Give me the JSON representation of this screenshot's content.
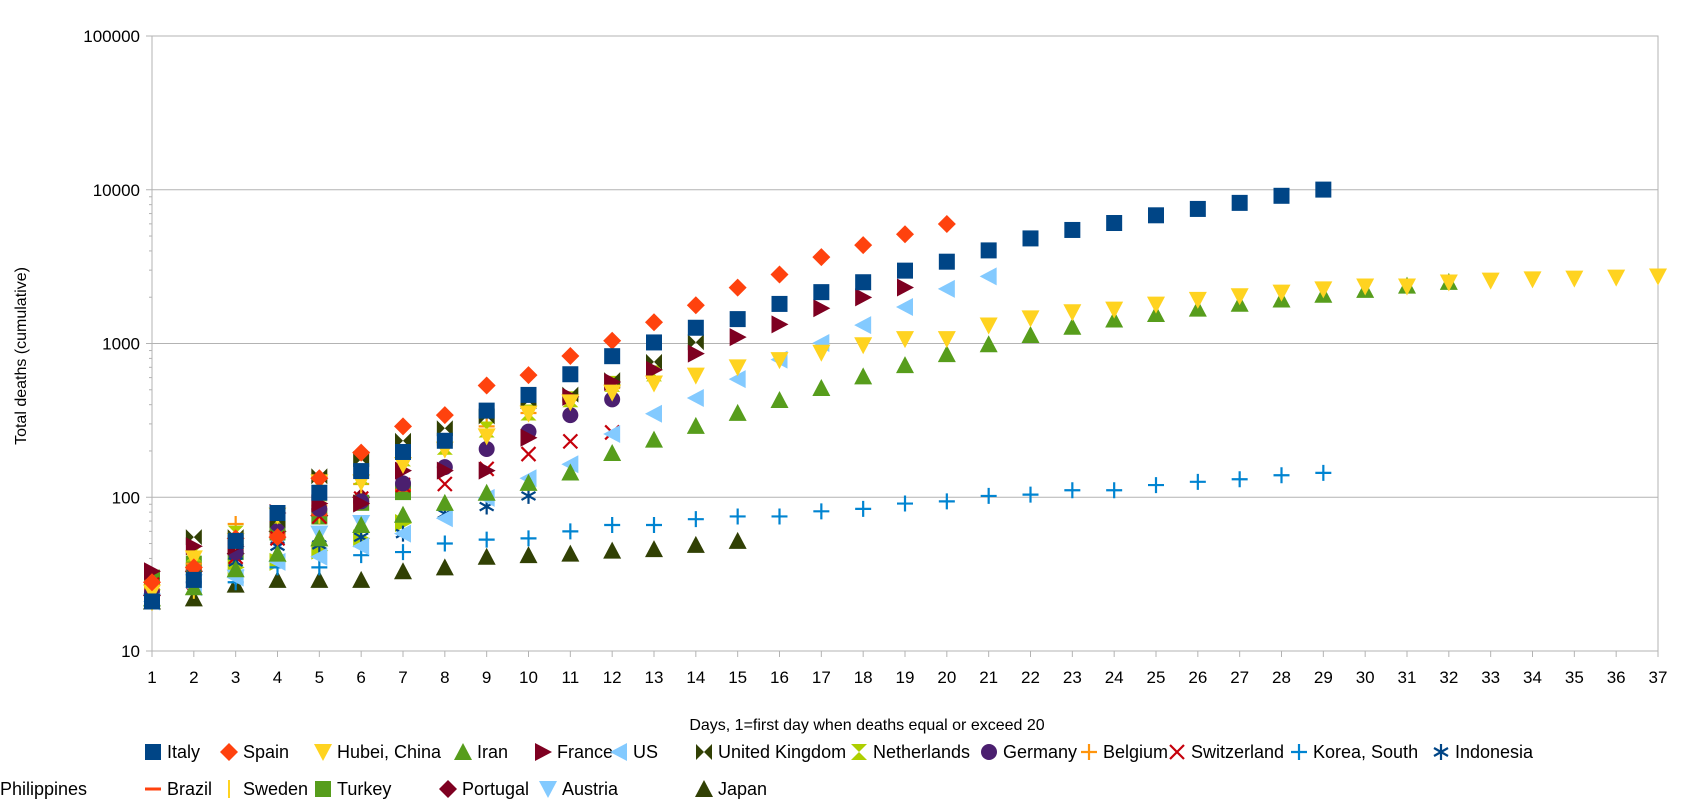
{
  "chart_data": {
    "type": "scatter",
    "title": "",
    "xlabel": "Days, 1=first day when deaths equal or exceed 20",
    "ylabel": "Total deaths (cumulative)",
    "x_scale": "linear",
    "y_scale": "log",
    "xlim": [
      1,
      37
    ],
    "ylim": [
      10,
      100000
    ],
    "x_ticks": [
      "1",
      "2",
      "3",
      "4",
      "5",
      "6",
      "7",
      "8",
      "9",
      "10",
      "11",
      "12",
      "13",
      "14",
      "15",
      "16",
      "17",
      "18",
      "19",
      "20",
      "21",
      "22",
      "23",
      "24",
      "25",
      "26",
      "27",
      "28",
      "29",
      "30",
      "31",
      "32",
      "33",
      "34",
      "35",
      "36",
      "37"
    ],
    "y_ticks": [
      "10",
      "100",
      "1000",
      "10000",
      "100000"
    ],
    "grid": "horizontal major gridlines",
    "legend_position": "bottom",
    "series": [
      {
        "name": "Italy",
        "marker": "square",
        "color": "#004586",
        "values": [
          21,
          29,
          52,
          79,
          107,
          148,
          197,
          233,
          366,
          463,
          631,
          827,
          1016,
          1266,
          1441,
          1809,
          2158,
          2503,
          2978,
          3405,
          4032,
          4825,
          5476,
          6077,
          6820,
          7503,
          8215,
          9134,
          10023
        ]
      },
      {
        "name": "Spain",
        "marker": "diamond",
        "color": "#ff420e",
        "values": [
          28,
          35,
          54,
          55,
          133,
          195,
          289,
          342,
          533,
          623,
          830,
          1043,
          1375,
          1772,
          2311,
          2808,
          3647,
          4365,
          5138,
          5982
        ]
      },
      {
        "name": "Hubei, China",
        "marker": "triangle-down",
        "color": "#ffd320",
        "values": [
          24,
          40,
          52,
          76,
          125,
          125,
          162,
          204,
          249,
          350,
          414,
          479,
          549,
          618,
          699,
          780,
          871,
          974,
          1068,
          1068,
          1310,
          1457,
          1596,
          1662,
          1789,
          1921,
          2029,
          2144,
          2250,
          2346,
          2346,
          2495,
          2563,
          2615,
          2641,
          2682,
          2727
        ]
      },
      {
        "name": "Iran",
        "marker": "triangle-up",
        "color": "#579d1c",
        "values": [
          22,
          26,
          34,
          43,
          54,
          66,
          77,
          92,
          107,
          124,
          145,
          194,
          237,
          291,
          354,
          429,
          514,
          611,
          724,
          853,
          988,
          1135,
          1284,
          1433,
          1556,
          1685,
          1812,
          1934,
          2077,
          2234,
          2378,
          2517
        ]
      },
      {
        "name": "France",
        "marker": "triangle-right",
        "color": "#7e0021",
        "values": [
          33,
          48,
          48,
          79,
          91,
          91,
          149,
          149,
          149,
          244,
          450,
          562,
          674,
          860,
          1100,
          1331,
          1696,
          1995,
          2314
        ]
      },
      {
        "name": "US",
        "marker": "triangle-left",
        "color": "#83caff",
        "values": [
          21,
          26,
          30,
          38,
          41,
          48,
          58,
          73,
          99,
          133,
          164,
          258,
          349,
          442,
          586,
          786,
          1008,
          1316,
          1726,
          2265,
          2731
        ]
      },
      {
        "name": "United Kingdom",
        "marker": "bowtie-h",
        "color": "#314004",
        "values": [
          21,
          55,
          55,
          71,
          137,
          177,
          233,
          281,
          335,
          422,
          465,
          578,
          759,
          1019
        ]
      },
      {
        "name": "Netherlands",
        "marker": "bowtie-v",
        "color": "#aecf00",
        "values": [
          24,
          43,
          58,
          76,
          106,
          136,
          179,
          213,
          276,
          356,
          434,
          546,
          639
        ]
      },
      {
        "name": "Germany",
        "marker": "circle",
        "color": "#4b1f6f",
        "values": [
          24,
          28,
          44,
          67,
          84,
          94,
          123,
          157,
          206,
          267,
          342,
          433
        ]
      },
      {
        "name": "Belgium",
        "marker": "plus",
        "color": "#ff950e",
        "values": [
          21,
          37,
          67,
          75,
          88,
          122,
          178,
          220,
          289,
          353,
          431,
          513
        ]
      },
      {
        "name": "Switzerland",
        "marker": "x",
        "color": "#c5000b",
        "values": [
          27,
          28,
          41,
          54,
          75,
          98,
          120,
          122,
          153,
          191,
          231,
          264
        ]
      },
      {
        "name": "Korea, South",
        "marker": "plus",
        "color": "#0084d1",
        "values": [
          22,
          28,
          28,
          35,
          35,
          42,
          44,
          50,
          53,
          54,
          60,
          66,
          66,
          72,
          75,
          75,
          81,
          84,
          91,
          94,
          102,
          104,
          111,
          111,
          120,
          126,
          131,
          139,
          144
        ]
      },
      {
        "name": "Indonesia",
        "marker": "asterisk",
        "color": "#004586",
        "values": [
          25,
          32,
          38,
          48,
          49,
          55,
          58,
          78,
          87,
          102
        ]
      },
      {
        "name": "Brazil",
        "marker": "dash",
        "color": "#ff420e",
        "values": [
          25,
          34,
          46,
          57,
          77,
          92,
          111
        ]
      },
      {
        "name": "Sweden",
        "marker": "vline",
        "color": "#ffd320",
        "values": [
          21,
          25,
          36,
          62,
          77,
          105
        ]
      },
      {
        "name": "Turkey",
        "marker": "square",
        "color": "#579d1c",
        "values": [
          30,
          37,
          44,
          59,
          75,
          92,
          108
        ]
      },
      {
        "name": "Portugal",
        "marker": "diamond",
        "color": "#7e0021",
        "values": [
          23,
          33,
          43,
          60,
          76,
          100
        ]
      },
      {
        "name": "Austria",
        "marker": "triangle-down",
        "color": "#83caff",
        "values": [
          21,
          28,
          30,
          49,
          58,
          68
        ]
      },
      {
        "name": "Japan",
        "marker": "triangle-up",
        "color": "#314004",
        "values": [
          21,
          22,
          27,
          29,
          29,
          29,
          33,
          35,
          41,
          42,
          43,
          45,
          46,
          49,
          52
        ]
      },
      {
        "name": "Philippines",
        "marker": "triangle-right",
        "color": "#aecf00",
        "values": [
          25,
          33,
          35,
          38,
          45,
          54,
          68
        ]
      }
    ]
  }
}
